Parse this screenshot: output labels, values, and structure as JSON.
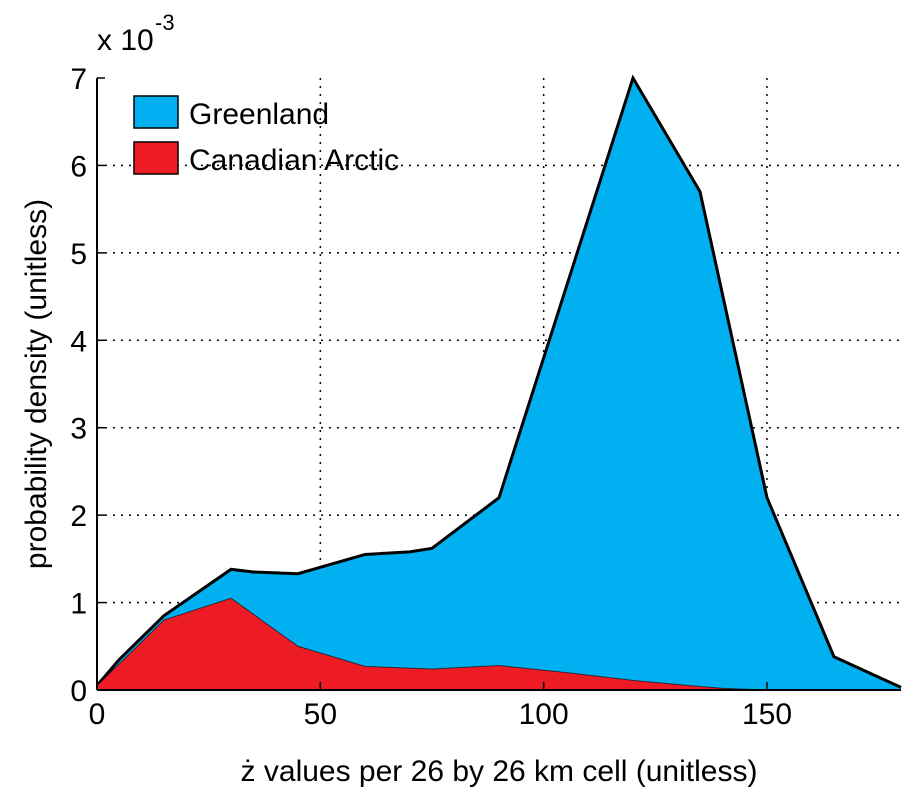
{
  "chart_data": {
    "type": "area",
    "title": "",
    "xlabel": "ż values per 26 by 26 km cell (unitless)",
    "ylabel": "probability density (unitless)",
    "y_multiplier_label": "x 10",
    "y_multiplier_exponent": "-3",
    "xlim": [
      0,
      180
    ],
    "ylim": [
      0,
      7
    ],
    "x_ticks": [
      0,
      50,
      100,
      150
    ],
    "y_ticks": [
      0,
      1,
      2,
      3,
      4,
      5,
      6,
      7
    ],
    "grid": true,
    "legend_position": "top-left",
    "series": [
      {
        "name": "Greenland",
        "color": "#00b0f0",
        "x": [
          0,
          5,
          15,
          30,
          35,
          45,
          60,
          70,
          75,
          90,
          100,
          120,
          135,
          150,
          165,
          180
        ],
        "values": [
          0.05,
          0.35,
          0.85,
          1.38,
          1.35,
          1.33,
          1.55,
          1.58,
          1.62,
          2.2,
          3.8,
          7.0,
          5.7,
          2.2,
          0.38,
          0.03
        ]
      },
      {
        "name": "Canadian Arctic",
        "color": "#ed1c24",
        "x": [
          0,
          15,
          30,
          45,
          60,
          75,
          90,
          105,
          120,
          135,
          140,
          150
        ],
        "values": [
          0.05,
          0.8,
          1.05,
          0.5,
          0.27,
          0.24,
          0.28,
          0.2,
          0.11,
          0.04,
          0.02,
          0.0
        ]
      }
    ]
  }
}
